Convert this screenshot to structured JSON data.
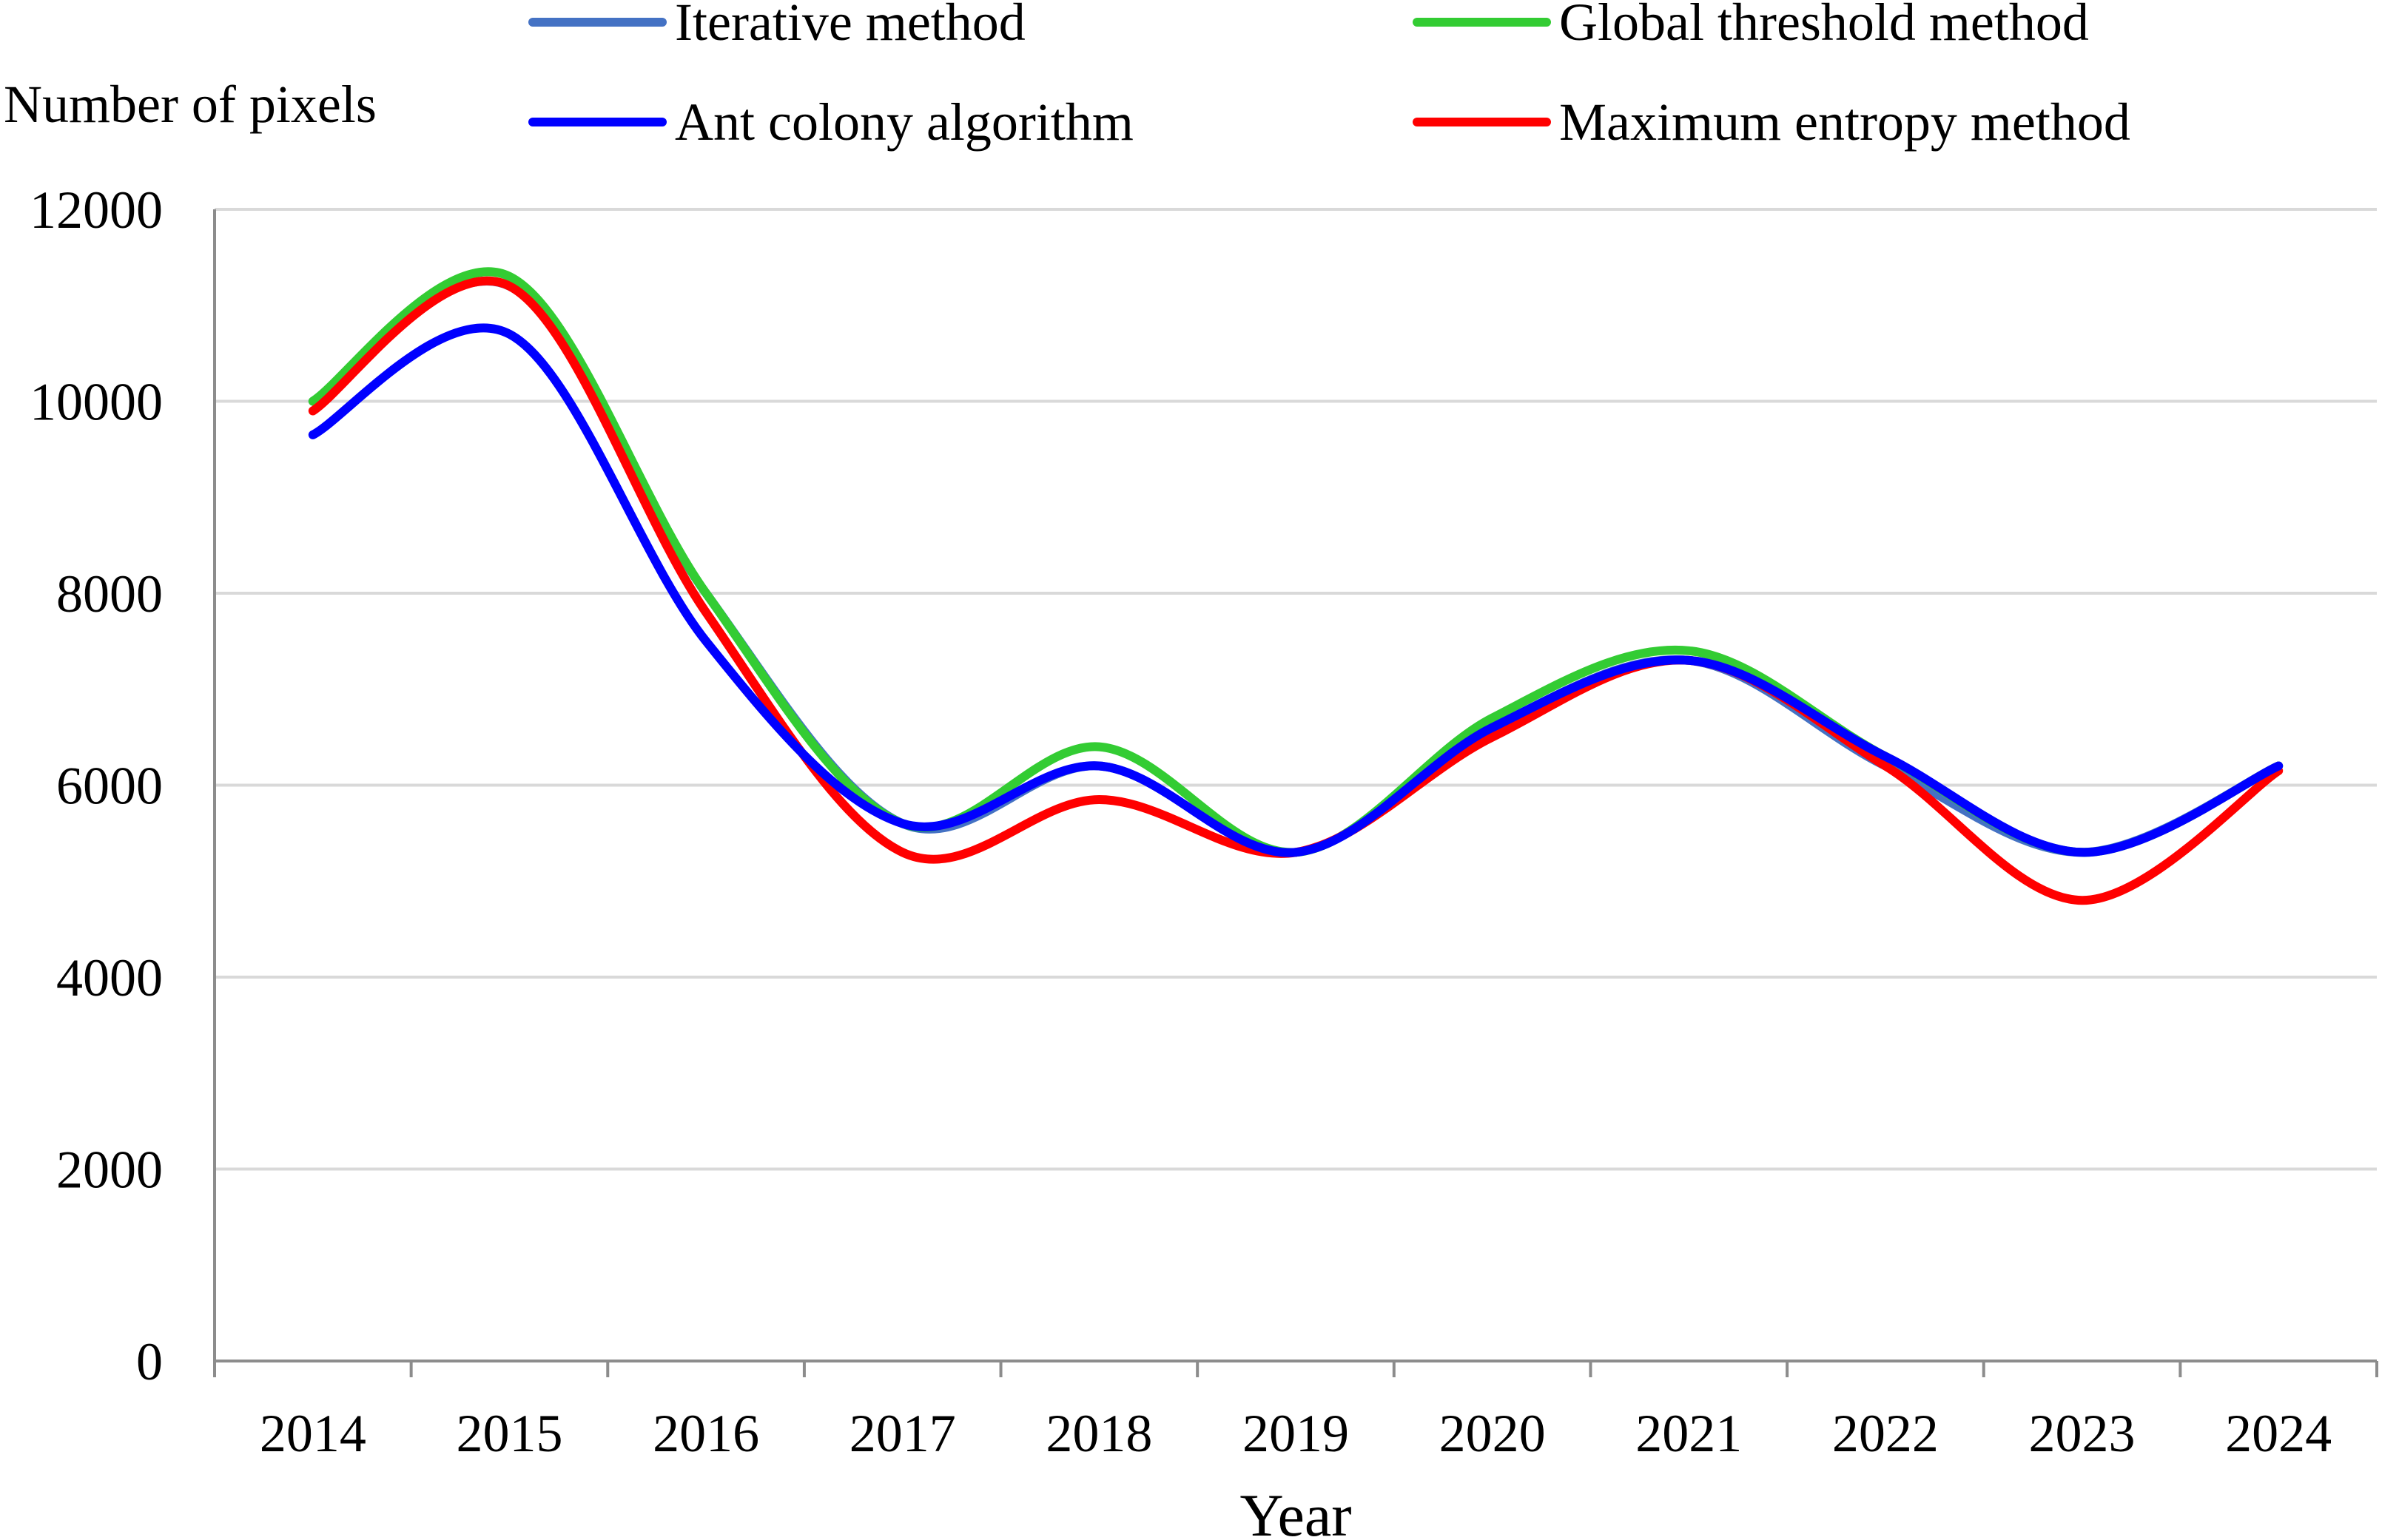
{
  "chart_data": {
    "type": "line",
    "title": "",
    "xlabel": "Year",
    "ylabel": "Number of pixels",
    "ylim": [
      0,
      12000
    ],
    "yticks": [
      0,
      2000,
      4000,
      6000,
      8000,
      10000,
      12000
    ],
    "grid": true,
    "legend_position": "top",
    "categories": [
      "2014",
      "2015",
      "2016",
      "2017",
      "2018",
      "2019",
      "2020",
      "2021",
      "2022",
      "2023",
      "2024"
    ],
    "series": [
      {
        "name": "Iterative method",
        "color": "#4472C4",
        "values": [
          10000,
          11200,
          8000,
          5600,
          6200,
          5300,
          6600,
          7300,
          6200,
          5300,
          6200
        ]
      },
      {
        "name": "Global threshold method",
        "color": "#33CC33",
        "values": [
          10000,
          11300,
          8000,
          5600,
          6400,
          5300,
          6700,
          7400,
          6300,
          5300,
          6200
        ]
      },
      {
        "name": "Ant colony algorithm",
        "color": "#0000FF",
        "values": [
          9650,
          10700,
          7500,
          5600,
          6200,
          5300,
          6600,
          7300,
          6300,
          5300,
          6200
        ]
      },
      {
        "name": "Maximum entropy method",
        "color": "#FF0000",
        "values": [
          9900,
          11200,
          7800,
          5300,
          5850,
          5300,
          6500,
          7300,
          6200,
          4800,
          6150
        ]
      }
    ]
  }
}
